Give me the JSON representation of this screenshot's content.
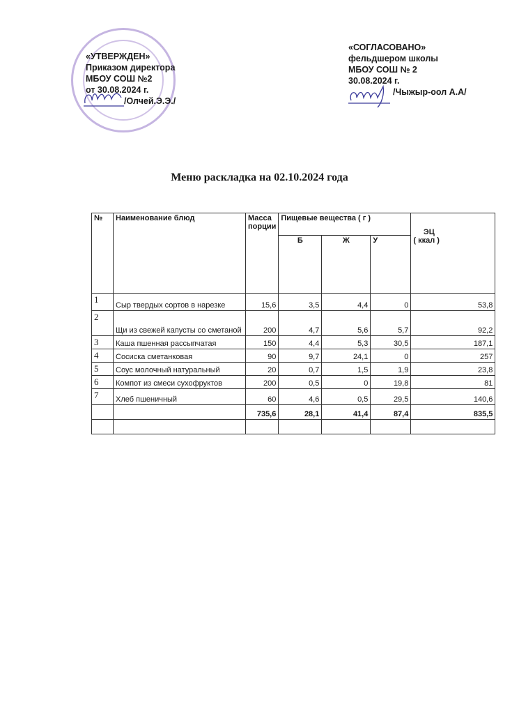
{
  "approval": {
    "lines": [
      "«УТВЕРЖДЕН»",
      "Приказом директора",
      "МБОУ СОШ №2",
      "от 30.08.2024 г.",
      "/Олчей.Э.Э./"
    ]
  },
  "agreement": {
    "lines": [
      "«СОГЛАСОВАНО»",
      "фельдшером школы",
      "МБОУ СОШ № 2",
      "30.08.2024 г.",
      "/Чыжыр-оол А.А/"
    ]
  },
  "title": "Меню раскладка на 02.10.2024 года",
  "table": {
    "headers": {
      "no": "№",
      "name": "Наименование блюд",
      "mass": "Масса порции",
      "nutrients": "Пищевые вещества ( г )",
      "b": "Б",
      "zh": "Ж",
      "u": "У",
      "energy_1": "ЭЦ",
      "energy_2": "( ккал )"
    },
    "rows": [
      {
        "no": "1",
        "name": "Сыр твердых сортов в нарезке",
        "mass": "15,6",
        "b": "3,5",
        "zh": "4,4",
        "u": "0",
        "e": "53,8"
      },
      {
        "no": "2",
        "name": "Щи из свежей капусты со сметаной",
        "mass": "200",
        "b": "4,7",
        "zh": "5,6",
        "u": "5,7",
        "e": "92,2"
      },
      {
        "no": "3",
        "name": "Каша пшенная рассыпчатая",
        "mass": "150",
        "b": "4,4",
        "zh": "5,3",
        "u": "30,5",
        "e": "187,1"
      },
      {
        "no": "4",
        "name": "Сосиска сметанковая",
        "mass": "90",
        "b": "9,7",
        "zh": "24,1",
        "u": "0",
        "e": "257"
      },
      {
        "no": "5",
        "name": "Соус молочный натуральный",
        "mass": "20",
        "b": "0,7",
        "zh": "1,5",
        "u": "1,9",
        "e": "23,8"
      },
      {
        "no": "6",
        "name": "Компот из смеси сухофруктов",
        "mass": "200",
        "b": "0,5",
        "zh": "0",
        "u": "19,8",
        "e": "81"
      },
      {
        "no": "7",
        "name": "Хлеб пшеничный",
        "mass": "60",
        "b": "4,6",
        "zh": "0,5",
        "u": "29,5",
        "e": "140,6"
      }
    ],
    "total": {
      "mass": "735,6",
      "b": "28,1",
      "zh": "41,4",
      "u": "87,4",
      "e": "835,5"
    }
  },
  "colors": {
    "stamp": "#9678c8",
    "signature": "#3a3a9a"
  }
}
